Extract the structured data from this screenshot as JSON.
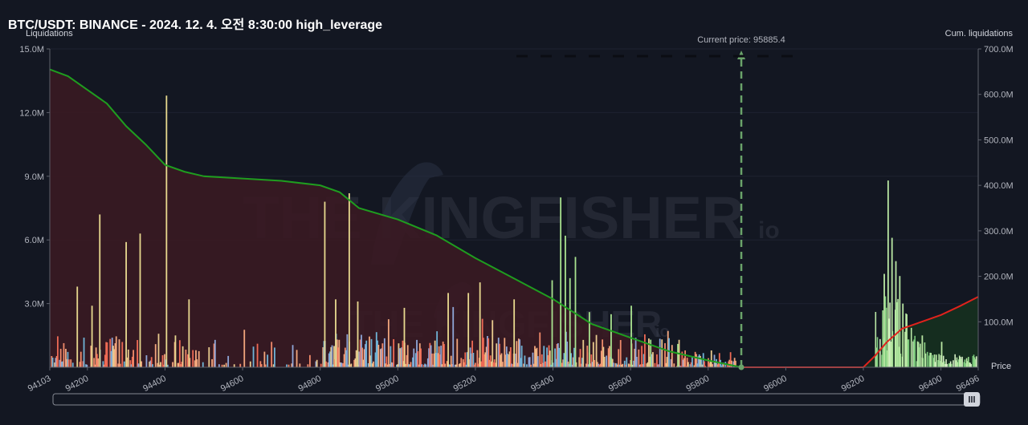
{
  "title": "BTC/USDT: BINANCE - 2024. 12. 4. 오전 8:30:00 high_leverage",
  "watermark": {
    "text": "THE KINGFISHER",
    "suffix": "io"
  },
  "chart_data": {
    "type": "bar",
    "y_left_label": "Liquidations",
    "y_right_label": "Cum. liquidations",
    "x_axis_label": "Price",
    "x_range": [
      94103,
      96496
    ],
    "x_ticks": [
      "94103",
      "94200",
      "94400",
      "94600",
      "94800",
      "95000",
      "95200",
      "95400",
      "95600",
      "95800",
      "96000",
      "96200",
      "96400",
      "96496"
    ],
    "x_tick_values": [
      94103,
      94200,
      94400,
      94600,
      94800,
      95000,
      95200,
      95400,
      95600,
      95800,
      96000,
      96200,
      96400,
      96496
    ],
    "y_left_range": [
      0,
      15000000
    ],
    "y_left_ticks": [
      "3.0M",
      "6.0M",
      "9.0M",
      "12.0M",
      "15.0M"
    ],
    "y_left_tick_values": [
      3000000,
      6000000,
      9000000,
      12000000,
      15000000
    ],
    "y_right_range": [
      0,
      700000000
    ],
    "y_right_ticks": [
      "100.0M",
      "200.0M",
      "300.0M",
      "400.0M",
      "500.0M",
      "600.0M",
      "700.0M"
    ],
    "y_right_tick_values": [
      100000000,
      200000000,
      300000000,
      400000000,
      500000000,
      600000000,
      700000000
    ],
    "current_price": 95885.4,
    "current_price_label": "Current price: 95885.4",
    "colors": {
      "short_side_bars": [
        "#f2a67d",
        "#f08a6a",
        "#ee6a55",
        "#e8c98d",
        "#8fa6d8",
        "#6fb3d6"
      ],
      "long_side_bars": [
        "#b9e8a6",
        "#95d88a",
        "#7cc97c",
        "#d3ecc2"
      ],
      "cum_below": "#1f9d1f",
      "cum_above": "#e0221c",
      "current_price_line": "#6aa36a",
      "fill_below": "#3a1a22",
      "fill_above": "#16301f"
    },
    "cum_below_curve": {
      "x": [
        94103,
        94150,
        94200,
        94250,
        94300,
        94350,
        94400,
        94450,
        94500,
        94600,
        94700,
        94800,
        94850,
        94900,
        95000,
        95100,
        95200,
        95300,
        95400,
        95500,
        95600,
        95700,
        95800,
        95885.4
      ],
      "y": [
        655000000,
        640000000,
        610000000,
        580000000,
        530000000,
        490000000,
        445000000,
        430000000,
        420000000,
        415000000,
        410000000,
        400000000,
        385000000,
        350000000,
        325000000,
        290000000,
        240000000,
        195000000,
        150000000,
        95000000,
        65000000,
        35000000,
        15000000,
        0
      ]
    },
    "cum_above_curve": {
      "x": [
        95885.4,
        96000,
        96200,
        96230,
        96260,
        96300,
        96350,
        96400,
        96450,
        96496
      ],
      "y": [
        0,
        0,
        0,
        25000000,
        55000000,
        85000000,
        100000000,
        115000000,
        135000000,
        155000000
      ]
    },
    "notable_bars": {
      "x": [
        94172,
        94210,
        94230,
        94298,
        94334,
        94402,
        94425,
        94460,
        94810,
        94838,
        94873,
        94895,
        95015,
        95128,
        95180,
        95210,
        95298,
        95396,
        95418,
        95430,
        95442,
        95456,
        95492,
        95548,
        95600,
        95650,
        95720,
        96252,
        96262,
        96272,
        96282,
        96292,
        96300,
        96310,
        96350,
        96400
      ],
      "y": [
        3800000,
        2900000,
        7200000,
        5900000,
        6300000,
        12800000,
        1500000,
        3200000,
        7800000,
        3200000,
        8200000,
        3100000,
        2800000,
        3500000,
        3500000,
        4000000,
        3200000,
        4100000,
        8000000,
        6200000,
        4200000,
        5200000,
        2600000,
        2500000,
        2900000,
        1300000,
        1100000,
        4400000,
        8800000,
        6100000,
        5000000,
        4300000,
        3000000,
        2500000,
        1500000,
        1200000
      ]
    }
  }
}
